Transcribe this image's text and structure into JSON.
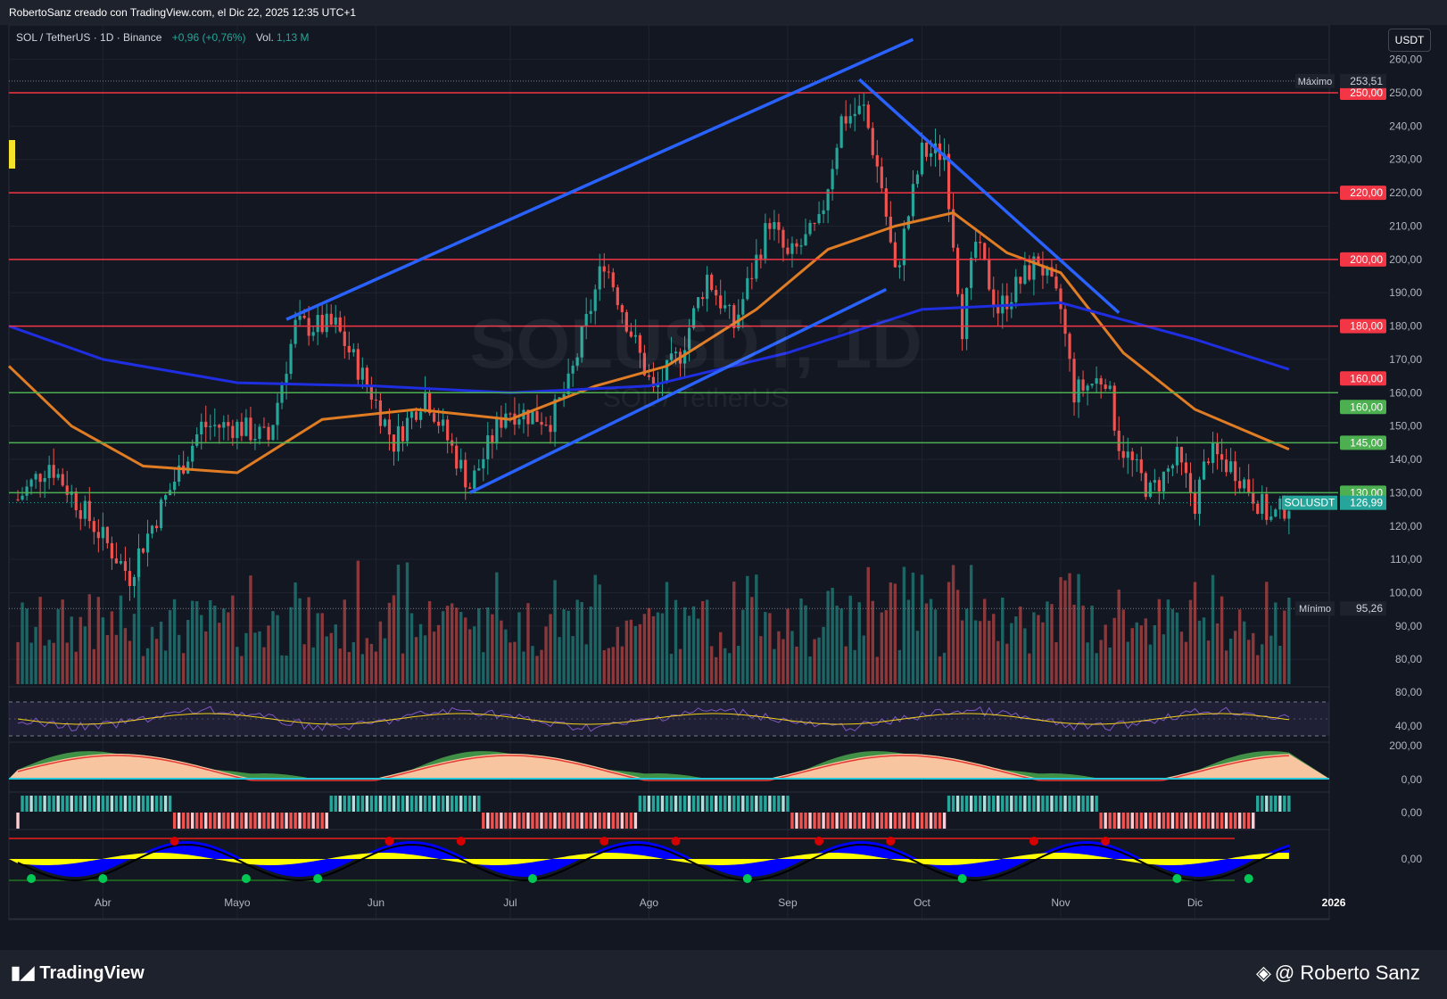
{
  "header": {
    "caption": "RobertoSanz creado con TradingView.com, el Dic 22, 2025 12:35 UTC+1"
  },
  "legend": {
    "symbol": "SOL / TetherUS · 1D · Binance",
    "change": "+0,96 (+0,76%)",
    "volume_label": "Vol.",
    "volume_value": "1,13 M"
  },
  "currency_button": "USDT",
  "watermark": {
    "ticker": "SOLUSDT, 1D",
    "name": "SOL / TetherUS"
  },
  "footer": {
    "brand": "TradingView",
    "author": "@ Roberto Sanz"
  },
  "colors": {
    "background": "#131722",
    "up": "#26a69a",
    "down": "#ef5350",
    "trendline": "#2962ff",
    "ma_orange": "#e07c24",
    "ma_blue": "#1e2ee0",
    "resistance": "#f23645",
    "support": "#4caf50"
  },
  "chart_data": {
    "type": "candlestick",
    "symbol": "SOLUSDT",
    "timeframe": "1D",
    "ylim": [
      74,
      268
    ],
    "price_ticks": [
      "260,00",
      "250,00",
      "240,00",
      "230,00",
      "220,00",
      "210,00",
      "200,00",
      "190,00",
      "180,00",
      "170,00",
      "160,00",
      "150,00",
      "140,00",
      "130,00",
      "120,00",
      "110,00",
      "100,00",
      "90,00",
      "80,00"
    ],
    "x_labels": [
      "Abr",
      "May o",
      "Jun",
      "Jul",
      "Ago",
      "Sep",
      "Oct",
      "Nov",
      "Dic",
      "2026"
    ],
    "x_label_text": [
      "Abr",
      "Mayo",
      "Jun",
      "Jul",
      "Ago",
      "Sep",
      "Oct",
      "Nov",
      "Dic",
      "2026"
    ],
    "x_label_dates": [
      "2025-04-01",
      "2025-05-01",
      "2025-06-01",
      "2025-07-01",
      "2025-08-01",
      "2025-09-01",
      "2025-10-01",
      "2025-11-01",
      "2025-12-01",
      "2026-01-01"
    ],
    "last_price": {
      "label": "SOLUSDT",
      "value": "126,99",
      "price": 126.99
    },
    "max_marker": {
      "label": "Máximo",
      "value": "253,51",
      "price": 253.51
    },
    "min_marker": {
      "label": "Mínimo",
      "value": "95,26",
      "price": 95.26
    },
    "horizontal_levels": [
      {
        "price": 250,
        "label": "250,00",
        "kind": "resistance"
      },
      {
        "price": 220,
        "label": "220,00",
        "kind": "resistance"
      },
      {
        "price": 200,
        "label": "200,00",
        "kind": "resistance"
      },
      {
        "price": 180,
        "label": "180,00",
        "kind": "resistance"
      },
      {
        "price": 160,
        "label": "160,00",
        "kind": "resistance"
      },
      {
        "price": 160,
        "label": "160,00",
        "kind": "support"
      },
      {
        "price": 145,
        "label": "145,00",
        "kind": "support"
      },
      {
        "price": 130,
        "label": "130,00",
        "kind": "support"
      }
    ],
    "trendlines": [
      {
        "from": [
          "2025-05-12",
          182
        ],
        "to": [
          "2025-09-29",
          266
        ]
      },
      {
        "from": [
          "2025-06-22",
          130
        ],
        "to": [
          "2025-09-23",
          191
        ]
      },
      {
        "from": [
          "2025-09-17",
          254
        ],
        "to": [
          "2025-11-14",
          184
        ]
      }
    ],
    "key_points": [
      {
        "date": "2025-03-13",
        "close": 128
      },
      {
        "date": "2025-03-20",
        "close": 139
      },
      {
        "date": "2025-04-07",
        "close": 105
      },
      {
        "date": "2025-04-09",
        "close": 112
      },
      {
        "date": "2025-04-23",
        "close": 150
      },
      {
        "date": "2025-05-01",
        "close": 150
      },
      {
        "date": "2025-05-08",
        "close": 146
      },
      {
        "date": "2025-05-14",
        "close": 180
      },
      {
        "date": "2025-05-23",
        "close": 180
      },
      {
        "date": "2025-05-31",
        "close": 160
      },
      {
        "date": "2025-06-05",
        "close": 145
      },
      {
        "date": "2025-06-12",
        "close": 160
      },
      {
        "date": "2025-06-22",
        "close": 132
      },
      {
        "date": "2025-06-30",
        "close": 155
      },
      {
        "date": "2025-07-10",
        "close": 152
      },
      {
        "date": "2025-07-14",
        "close": 162
      },
      {
        "date": "2025-07-22",
        "close": 200
      },
      {
        "date": "2025-08-02",
        "close": 160
      },
      {
        "date": "2025-08-08",
        "close": 172
      },
      {
        "date": "2025-08-14",
        "close": 195
      },
      {
        "date": "2025-08-20",
        "close": 180
      },
      {
        "date": "2025-08-28",
        "close": 212
      },
      {
        "date": "2025-09-01",
        "close": 200
      },
      {
        "date": "2025-09-08",
        "close": 210
      },
      {
        "date": "2025-09-13",
        "close": 242
      },
      {
        "date": "2025-09-18",
        "close": 245
      },
      {
        "date": "2025-09-22",
        "close": 222
      },
      {
        "date": "2025-09-25",
        "close": 195
      },
      {
        "date": "2025-10-01",
        "close": 232
      },
      {
        "date": "2025-10-06",
        "close": 232
      },
      {
        "date": "2025-10-10",
        "close": 180
      },
      {
        "date": "2025-10-13",
        "close": 205
      },
      {
        "date": "2025-10-18",
        "close": 185
      },
      {
        "date": "2025-10-27",
        "close": 200
      },
      {
        "date": "2025-11-01",
        "close": 185
      },
      {
        "date": "2025-11-04",
        "close": 160
      },
      {
        "date": "2025-11-11",
        "close": 165
      },
      {
        "date": "2025-11-14",
        "close": 145
      },
      {
        "date": "2025-11-21",
        "close": 130
      },
      {
        "date": "2025-11-27",
        "close": 140
      },
      {
        "date": "2025-12-01",
        "close": 127
      },
      {
        "date": "2025-12-04",
        "close": 142
      },
      {
        "date": "2025-12-10",
        "close": 137
      },
      {
        "date": "2025-12-18",
        "close": 122
      },
      {
        "date": "2025-12-22",
        "close": 127
      }
    ],
    "moving_averages": [
      {
        "color": "orange",
        "points": [
          [
            "2025-03-11",
            168
          ],
          [
            "2025-03-25",
            150
          ],
          [
            "2025-04-10",
            138
          ],
          [
            "2025-05-01",
            136
          ],
          [
            "2025-05-20",
            152
          ],
          [
            "2025-06-10",
            155
          ],
          [
            "2025-07-01",
            152
          ],
          [
            "2025-07-20",
            162
          ],
          [
            "2025-08-05",
            168
          ],
          [
            "2025-08-25",
            185
          ],
          [
            "2025-09-10",
            203
          ],
          [
            "2025-09-25",
            210
          ],
          [
            "2025-10-08",
            214
          ],
          [
            "2025-10-20",
            202
          ],
          [
            "2025-11-01",
            196
          ],
          [
            "2025-11-15",
            172
          ],
          [
            "2025-12-01",
            155
          ],
          [
            "2025-12-22",
            143
          ]
        ]
      },
      {
        "color": "blue",
        "points": [
          [
            "2025-03-11",
            180
          ],
          [
            "2025-04-01",
            170
          ],
          [
            "2025-05-01",
            163
          ],
          [
            "2025-06-01",
            162
          ],
          [
            "2025-07-01",
            160
          ],
          [
            "2025-08-01",
            162
          ],
          [
            "2025-09-01",
            172
          ],
          [
            "2025-10-01",
            185
          ],
          [
            "2025-11-01",
            187
          ],
          [
            "2025-12-01",
            176
          ],
          [
            "2025-12-22",
            167
          ]
        ]
      }
    ],
    "rsi_panel": {
      "ticks": [
        "80,00",
        "40,00"
      ]
    },
    "oscillator_panel": {
      "ticks": [
        "200,00",
        "0,00"
      ]
    },
    "histogram_panel": {
      "ticks": [
        "0,00"
      ]
    },
    "wave_panel": {
      "ticks": [
        "0,00"
      ]
    }
  }
}
